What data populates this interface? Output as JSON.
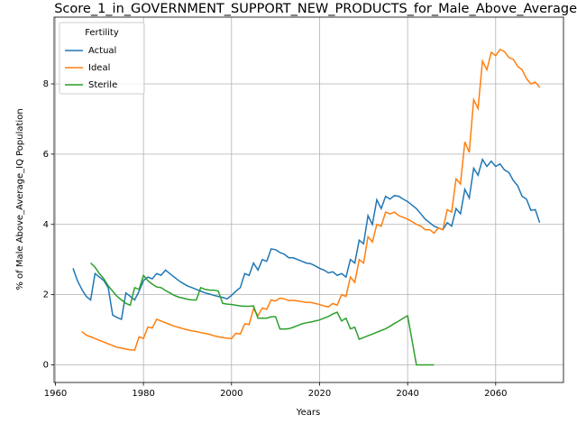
{
  "chart_data": {
    "type": "line",
    "title": "Score_1_in_GOVERNMENT_SUPPORT_NEW_PRODUCTS_for_Male_Above_Average",
    "xlabel": "Years",
    "ylabel": "% of Male Above_Average_IQ Population",
    "legend_title": "Fertility",
    "legend_loc": "upper left",
    "grid": true,
    "xlim": [
      1959.7,
      2075.4
    ],
    "xticks": [
      1960,
      1980,
      2000,
      2020,
      2040,
      2060
    ],
    "ylim": [
      -0.5,
      9.9
    ],
    "yticks": [
      0,
      2,
      4,
      6,
      8
    ],
    "x": [
      1964,
      1965,
      1966,
      1967,
      1968,
      1969,
      1970,
      1971,
      1972,
      1973,
      1974,
      1975,
      1976,
      1977,
      1978,
      1979,
      1980,
      1981,
      1982,
      1983,
      1984,
      1985,
      1986,
      1987,
      1988,
      1989,
      1990,
      1991,
      1992,
      1993,
      1994,
      1995,
      1996,
      1997,
      1998,
      1999,
      2000,
      2001,
      2002,
      2003,
      2004,
      2005,
      2006,
      2007,
      2008,
      2009,
      2010,
      2011,
      2012,
      2013,
      2014,
      2015,
      2016,
      2017,
      2018,
      2019,
      2020,
      2021,
      2022,
      2023,
      2024,
      2025,
      2026,
      2027,
      2028,
      2029,
      2030,
      2031,
      2032,
      2033,
      2034,
      2035,
      2036,
      2037,
      2038,
      2039,
      2040,
      2041,
      2042,
      2043,
      2044,
      2045,
      2046,
      2047,
      2048,
      2049,
      2050,
      2051,
      2052,
      2053,
      2054,
      2055,
      2056,
      2057,
      2058,
      2059,
      2060,
      2061,
      2062,
      2063,
      2064,
      2065,
      2066,
      2067,
      2068,
      2069,
      2070
    ],
    "series": [
      {
        "name": "Actual",
        "color": "#1f77b4",
        "values": [
          2.75,
          2.4,
          2.15,
          1.95,
          1.85,
          2.6,
          2.5,
          2.4,
          2.2,
          1.42,
          1.35,
          1.3,
          2.05,
          1.95,
          1.85,
          2.1,
          2.4,
          2.5,
          2.45,
          2.6,
          2.55,
          2.7,
          2.6,
          2.5,
          2.4,
          2.32,
          2.25,
          2.2,
          2.15,
          2.1,
          2.05,
          2.02,
          1.98,
          1.95,
          1.92,
          1.88,
          1.98,
          2.1,
          2.2,
          2.6,
          2.55,
          2.9,
          2.7,
          3.0,
          2.95,
          3.3,
          3.28,
          3.2,
          3.15,
          3.05,
          3.05,
          3.0,
          2.95,
          2.9,
          2.88,
          2.82,
          2.75,
          2.7,
          2.62,
          2.65,
          2.55,
          2.6,
          2.5,
          3.0,
          2.9,
          3.55,
          3.45,
          4.25,
          4.0,
          4.7,
          4.45,
          4.8,
          4.72,
          4.82,
          4.8,
          4.72,
          4.65,
          4.55,
          4.45,
          4.3,
          4.15,
          4.05,
          3.95,
          3.9,
          3.85,
          4.05,
          3.95,
          4.45,
          4.3,
          5.0,
          4.75,
          5.6,
          5.4,
          5.85,
          5.65,
          5.8,
          5.65,
          5.72,
          5.55,
          5.48,
          5.25,
          5.1,
          4.8,
          4.72,
          4.4,
          4.42,
          4.05
        ]
      },
      {
        "name": "Ideal",
        "color": "#ff7f0e",
        "values": [
          null,
          null,
          0.95,
          0.85,
          0.8,
          0.75,
          0.7,
          0.65,
          0.6,
          0.55,
          0.5,
          0.48,
          0.45,
          0.43,
          0.42,
          0.8,
          0.75,
          1.08,
          1.05,
          1.3,
          1.25,
          1.2,
          1.15,
          1.1,
          1.07,
          1.03,
          1.0,
          0.97,
          0.95,
          0.92,
          0.9,
          0.87,
          0.83,
          0.8,
          0.78,
          0.76,
          0.75,
          0.9,
          0.88,
          1.17,
          1.15,
          1.6,
          1.4,
          1.62,
          1.58,
          1.85,
          1.82,
          1.9,
          1.88,
          1.83,
          1.84,
          1.82,
          1.8,
          1.78,
          1.78,
          1.75,
          1.72,
          1.68,
          1.65,
          1.75,
          1.7,
          2.0,
          1.95,
          2.5,
          2.35,
          3.0,
          2.9,
          3.65,
          3.5,
          4.0,
          3.95,
          4.35,
          4.3,
          4.35,
          4.25,
          4.2,
          4.15,
          4.08,
          4.0,
          3.95,
          3.85,
          3.85,
          3.75,
          3.9,
          3.85,
          4.42,
          4.35,
          5.3,
          5.15,
          6.35,
          6.05,
          7.55,
          7.3,
          8.65,
          8.4,
          8.9,
          8.8,
          8.98,
          8.92,
          8.75,
          8.7,
          8.5,
          8.4,
          8.15,
          8.0,
          8.05,
          7.9
        ]
      },
      {
        "name": "Sterile",
        "color": "#2ca02c",
        "values": [
          null,
          null,
          null,
          null,
          2.9,
          2.78,
          2.6,
          2.45,
          2.25,
          2.1,
          1.95,
          1.85,
          1.75,
          1.7,
          2.2,
          2.15,
          2.55,
          2.4,
          2.3,
          2.22,
          2.2,
          2.12,
          2.05,
          1.98,
          1.93,
          1.9,
          1.87,
          1.85,
          1.85,
          2.2,
          2.15,
          2.13,
          2.13,
          2.1,
          1.75,
          1.73,
          1.72,
          1.7,
          1.68,
          1.67,
          1.67,
          1.68,
          1.33,
          1.33,
          1.33,
          1.37,
          1.37,
          1.02,
          1.02,
          1.03,
          1.07,
          1.12,
          1.17,
          1.2,
          1.22,
          1.25,
          1.28,
          1.33,
          1.38,
          1.45,
          1.5,
          1.25,
          1.33,
          1.03,
          1.07,
          0.73,
          0.78,
          0.83,
          0.88,
          0.93,
          0.98,
          1.03,
          1.1,
          1.18,
          1.25,
          1.33,
          1.4,
          0.7,
          0.0,
          0.0,
          0.0,
          0.0,
          0.0,
          null,
          null,
          null,
          null,
          null,
          null,
          null,
          null,
          null,
          null,
          null,
          null,
          null,
          null,
          null,
          null,
          null,
          null,
          null,
          null,
          null,
          null,
          null,
          null
        ]
      }
    ]
  }
}
